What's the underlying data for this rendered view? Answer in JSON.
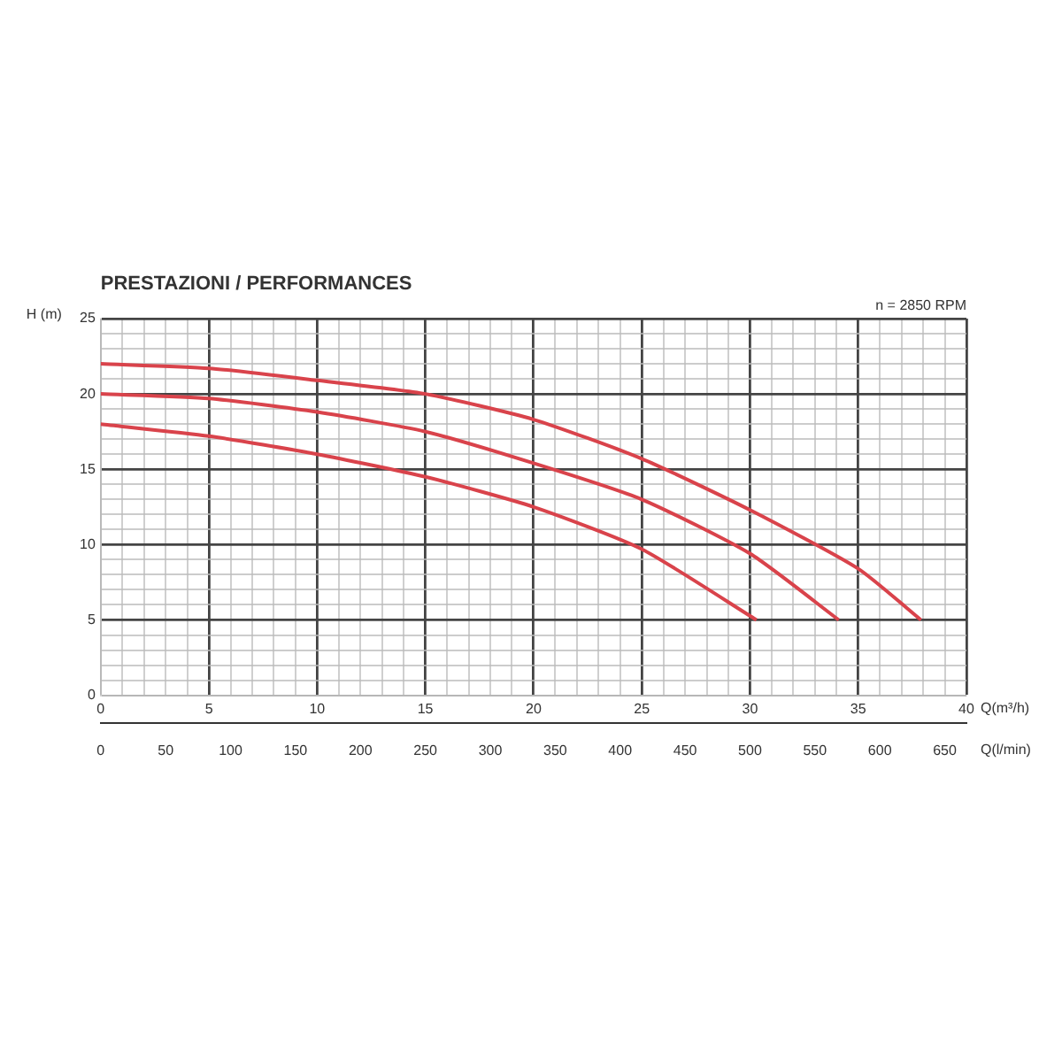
{
  "chart_data": {
    "type": "line",
    "title": "PRESTAZIONI / PERFORMANCES",
    "xlabel": "Q(m³/h)",
    "x2label": "Q(l/min)",
    "ylabel": "H (m)",
    "annotations": [
      "n = 2850 RPM"
    ],
    "grid": true,
    "legend": false,
    "marker": "none",
    "line_style": "solid",
    "series": [
      {
        "color": "#d9434b",
        "x": [
          0,
          5,
          10,
          15,
          20,
          25,
          30,
          35,
          37.9
        ],
        "values": [
          22,
          21.7,
          20.9,
          20,
          18.3,
          15.7,
          12.3,
          8.4,
          5
        ]
      },
      {
        "color": "#d9434b",
        "x": [
          0,
          5,
          10,
          15,
          20,
          25,
          30,
          34.1
        ],
        "values": [
          20,
          19.7,
          18.8,
          17.5,
          15.4,
          13,
          9.4,
          5
        ]
      },
      {
        "color": "#d9434b",
        "x": [
          0,
          5,
          10,
          15,
          20,
          25,
          30.3
        ],
        "values": [
          18,
          17.2,
          16,
          14.5,
          12.5,
          9.7,
          5
        ]
      }
    ],
    "xlim": [
      0,
      40
    ],
    "xticks": [
      0,
      {
        "value": 1,
        "label": null
      },
      {
        "value": 2,
        "label": null
      },
      {
        "value": 3,
        "label": null
      },
      {
        "value": 4,
        "label": null
      },
      5,
      {
        "value": 6,
        "label": null
      },
      {
        "value": 7,
        "label": null
      },
      {
        "value": 8,
        "label": null
      },
      {
        "value": 9,
        "label": null
      },
      10,
      {
        "value": 11,
        "label": null
      },
      {
        "value": 12,
        "label": null
      },
      {
        "value": 13,
        "label": null
      },
      {
        "value": 14,
        "label": null
      },
      15,
      {
        "value": 16,
        "label": null
      },
      {
        "value": 17,
        "label": null
      },
      {
        "value": 18,
        "label": null
      },
      {
        "value": 19,
        "label": null
      },
      20,
      {
        "value": 21,
        "label": null
      },
      {
        "value": 22,
        "label": null
      },
      {
        "value": 23,
        "label": null
      },
      {
        "value": 24,
        "label": null
      },
      25,
      {
        "value": 26,
        "label": null
      },
      {
        "value": 27,
        "label": null
      },
      {
        "value": 28,
        "label": null
      },
      {
        "value": 29,
        "label": null
      },
      30,
      {
        "value": 31,
        "label": null
      },
      {
        "value": 32,
        "label": null
      },
      {
        "value": 33,
        "label": null
      },
      {
        "value": 34,
        "label": null
      },
      35,
      {
        "value": 36,
        "label": null
      },
      {
        "value": 37,
        "label": null
      },
      {
        "value": 38,
        "label": null
      },
      {
        "value": 39,
        "label": null
      },
      40
    ],
    "x2lim": [
      0,
      666.67
    ],
    "x2ticks": [
      0,
      50,
      100,
      150,
      200,
      250,
      300,
      350,
      400,
      450,
      500,
      550,
      600,
      650
    ],
    "ylim": [
      0,
      25
    ],
    "yticks": [
      0,
      {
        "value": 1,
        "label": null
      },
      {
        "value": 2,
        "label": null
      },
      {
        "value": 3,
        "label": null
      },
      {
        "value": 4,
        "label": null
      },
      5,
      {
        "value": 6,
        "label": null
      },
      {
        "value": 7,
        "label": null
      },
      {
        "value": 8,
        "label": null
      },
      {
        "value": 9,
        "label": null
      },
      10,
      {
        "value": 11,
        "label": null
      },
      {
        "value": 12,
        "label": null
      },
      {
        "value": 13,
        "label": null
      },
      {
        "value": 14,
        "label": null
      },
      15,
      {
        "value": 16,
        "label": null
      },
      {
        "value": 17,
        "label": null
      },
      {
        "value": 18,
        "label": null
      },
      {
        "value": 19,
        "label": null
      },
      20,
      {
        "value": 21,
        "label": null
      },
      {
        "value": 22,
        "label": null
      },
      {
        "value": 23,
        "label": null
      },
      {
        "value": 24,
        "label": null
      },
      25
    ]
  }
}
